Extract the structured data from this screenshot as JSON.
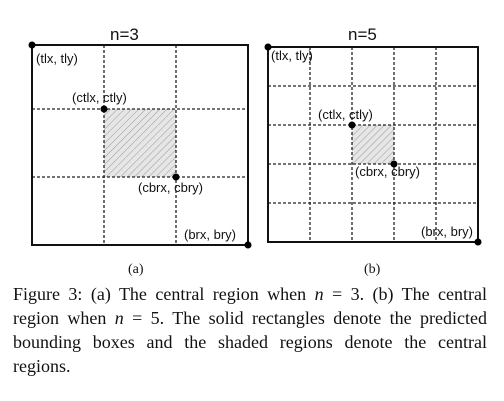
{
  "panel_a": {
    "title": "n=3",
    "sublabel": "(a)",
    "tl": "(tlx, tly)",
    "ctl": "(ctlx, ctly)",
    "cbr": "(cbrx, cbry)",
    "br": "(brx, bry)"
  },
  "panel_b": {
    "title": "n=5",
    "sublabel": "(b)",
    "tl": "(tlx, tly)",
    "ctl": "(ctlx, ctly)",
    "cbr": "(cbrx, cbry)",
    "br": "(brx, bry)"
  },
  "caption": {
    "p1": "Figure 3: (a) The central region when ",
    "m1": "n",
    "p2": " = 3. (b) The central region when ",
    "m2": "n",
    "p3": " = 5. The solid rectangles denote the predicted bounding boxes and the shaded regions denote the central regions."
  }
}
